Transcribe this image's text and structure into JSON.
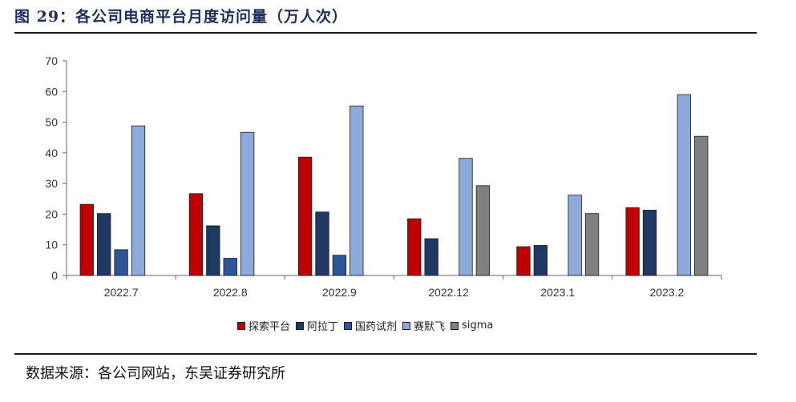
{
  "header": {
    "title": "图 29：各公司电商平台月度访问量（万人次）"
  },
  "footer": {
    "source": "数据来源：各公司网站，东吴证券研究所"
  },
  "colors": {
    "探索平台": "#c00000",
    "阿拉丁": "#1f3864",
    "国药试剂": "#2e5597",
    "赛默飞": "#8eaadb",
    "sigma": "#808080"
  },
  "chart_data": {
    "type": "bar",
    "title": "",
    "xlabel": "",
    "ylabel": "",
    "ylim": [
      0,
      70
    ],
    "yticks": [
      0,
      10,
      20,
      30,
      40,
      50,
      60,
      70
    ],
    "grid": false,
    "legend_position": "bottom",
    "categories": [
      "2022.7",
      "2022.8",
      "2022.9",
      "2022.12",
      "2023.1",
      "2023.2"
    ],
    "series": [
      {
        "name": "探索平台",
        "color": "#c00000",
        "values": [
          23.2,
          26.7,
          38.6,
          18.5,
          9.4,
          22.1
        ]
      },
      {
        "name": "阿拉丁",
        "color": "#1f3864",
        "values": [
          20.2,
          16.2,
          20.7,
          12.0,
          9.8,
          21.3
        ]
      },
      {
        "name": "国药试剂",
        "color": "#2e5597",
        "values": [
          8.4,
          5.6,
          6.6,
          null,
          null,
          null
        ]
      },
      {
        "name": "赛默飞",
        "color": "#8eaadb",
        "values": [
          48.8,
          46.7,
          55.3,
          38.2,
          26.2,
          59.0
        ]
      },
      {
        "name": "sigma",
        "color": "#808080",
        "values": [
          null,
          null,
          null,
          29.3,
          20.2,
          45.4
        ]
      }
    ]
  }
}
